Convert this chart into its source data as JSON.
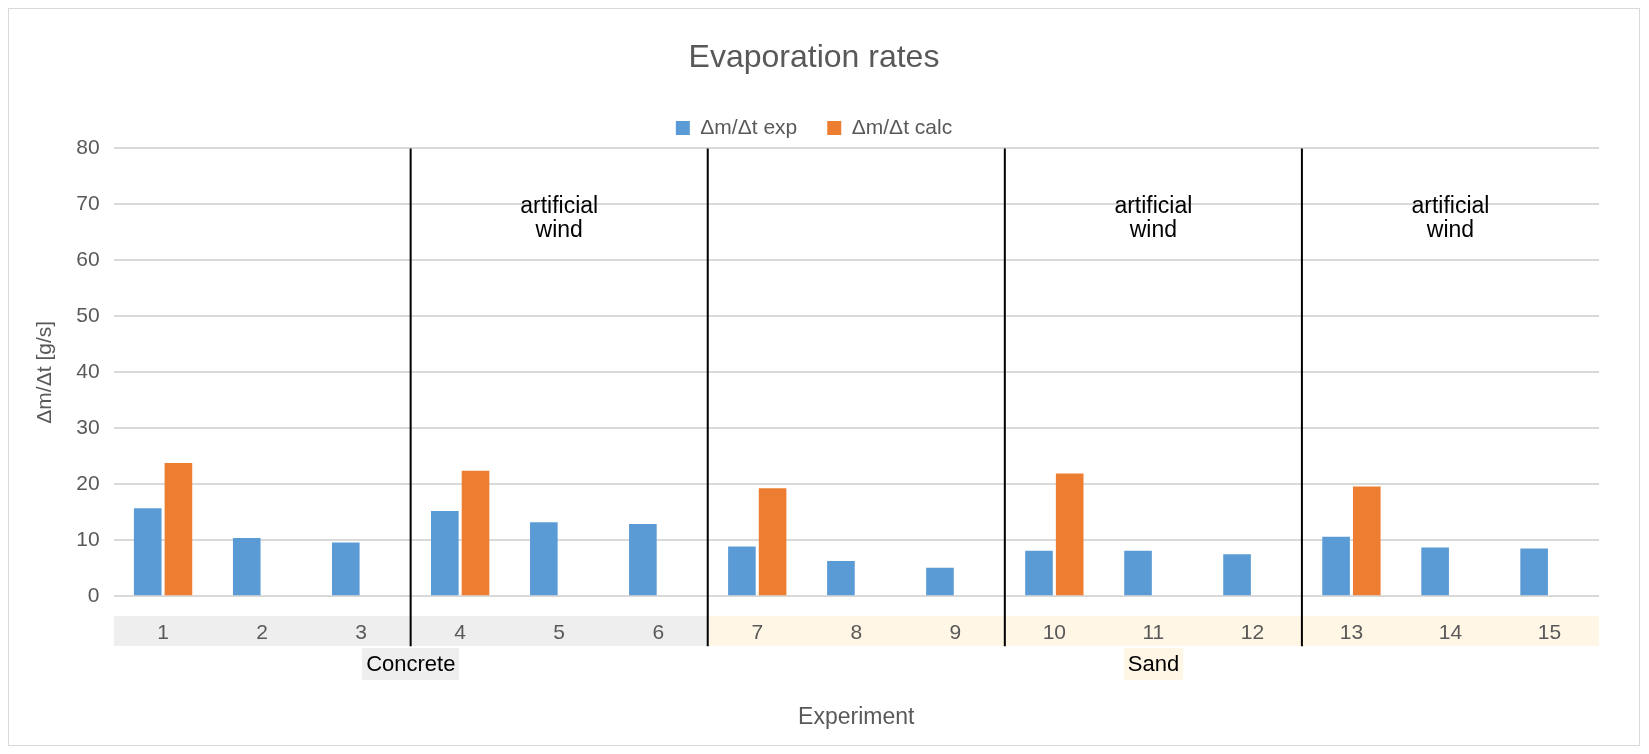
{
  "chart_data": {
    "type": "bar",
    "title": "Evaporation rates",
    "xlabel": "Experiment",
    "ylabel": "Δm/Δt [g/s]",
    "x": [
      1,
      2,
      3,
      4,
      5,
      6,
      7,
      8,
      9,
      10,
      11,
      12,
      13,
      14,
      15
    ],
    "xlim": [
      0.5,
      15.5
    ],
    "xticks": [
      1,
      2,
      3,
      4,
      5,
      6,
      7,
      8,
      9,
      10,
      11,
      12,
      13,
      14,
      15
    ],
    "series": [
      {
        "name": "Δm/Δt exp",
        "color": "#5b9bd5",
        "values": [
          15.7,
          10.4,
          9.6,
          15.2,
          13.2,
          12.9,
          8.9,
          6.3,
          5.1,
          8.1,
          8.1,
          7.5,
          10.6,
          8.7,
          8.5
        ]
      },
      {
        "name": "Δm/Δt calc",
        "color": "#ed7d31",
        "values": [
          23.8,
          null,
          null,
          22.4,
          null,
          null,
          19.3,
          null,
          null,
          21.9,
          null,
          null,
          19.6,
          null,
          null
        ]
      }
    ],
    "ylim": [
      0,
      80
    ],
    "yticks": [
      0,
      10,
      20,
      30,
      40,
      50,
      60,
      70,
      80
    ],
    "grid": "y",
    "legend": "top",
    "ref_lines": [
      {
        "axis": "x",
        "value": 3.5,
        "color": "#000000"
      },
      {
        "axis": "x",
        "value": 6.5,
        "color": "#000000"
      },
      {
        "axis": "x",
        "value": 9.5,
        "color": "#000000"
      },
      {
        "axis": "x",
        "value": 12.5,
        "color": "#000000"
      }
    ],
    "annotations": [
      "artificial wind",
      "artificial wind",
      "artificial wind",
      "Concrete",
      "Sand"
    ]
  }
}
